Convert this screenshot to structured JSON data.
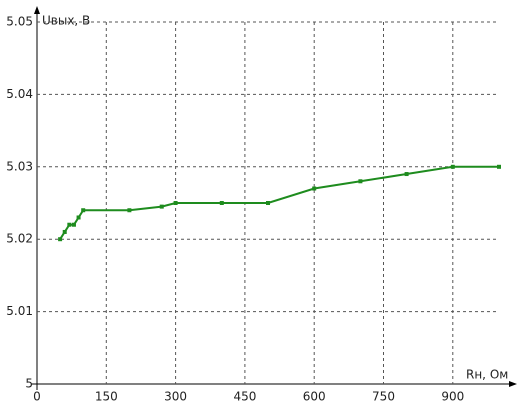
{
  "chart_data": {
    "type": "line",
    "y_label": "Uвых, В",
    "x_label": "Rн, Ом",
    "x": [
      50,
      60,
      70,
      80,
      90,
      100,
      200,
      270,
      300,
      400,
      500,
      600,
      700,
      800,
      900,
      1000
    ],
    "series": [
      {
        "color": "#1e8c1e",
        "values": [
          5.02,
          5.021,
          5.022,
          5.022,
          5.023,
          5.024,
          5.024,
          5.0245,
          5.025,
          5.025,
          5.025,
          5.027,
          5.028,
          5.029,
          5.03,
          5.03
        ]
      }
    ],
    "xlim": [
      0,
      1000
    ],
    "xticks": [
      0,
      150,
      300,
      450,
      600,
      750,
      900
    ],
    "ylim": [
      5,
      5.05
    ],
    "yticks": [
      5,
      5.01,
      5.02,
      5.03,
      5.04,
      5.05
    ],
    "grid": true
  }
}
